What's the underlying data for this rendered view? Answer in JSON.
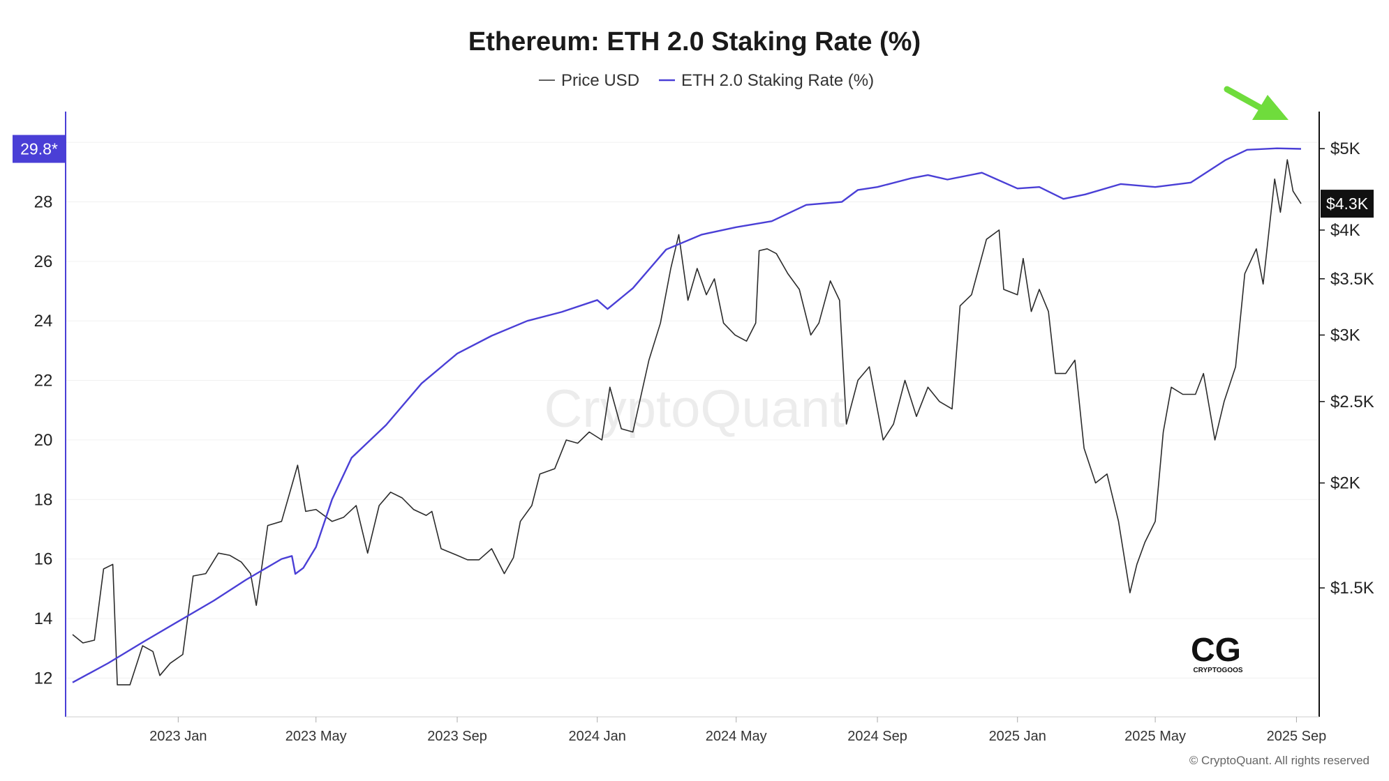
{
  "chart_data": {
    "type": "line",
    "title": "Ethereum: ETH 2.0 Staking Rate (%)",
    "legend": [
      "Price USD",
      "ETH 2.0 Staking Rate (%)"
    ],
    "legend_placement": "top-center",
    "x_ticks": [
      "2023 Jan",
      "2023 May",
      "2023 Sep",
      "2024 Jan",
      "2024 May",
      "2024 Sep",
      "2025 Jan",
      "2025 May",
      "2025 Sep"
    ],
    "x_range": [
      "2022-10-01",
      "2025-09-05"
    ],
    "y_left": {
      "ticks": [
        12,
        14,
        16,
        18,
        20,
        22,
        24,
        26,
        28
      ],
      "range": [
        11,
        30.8
      ],
      "current_label": "29.8*"
    },
    "y_right": {
      "ticks": [
        "$1.5K",
        "$2K",
        "$2.5K",
        "$3K",
        "$3.5K",
        "$4K",
        "$5K"
      ],
      "tick_values": [
        1500,
        2000,
        2500,
        3000,
        3500,
        4000,
        5000
      ],
      "scale": "log",
      "range": [
        1080,
        5430
      ],
      "current_label": "$4.3K"
    },
    "grid": true,
    "series": [
      {
        "name": "ETH 2.0 Staking Rate (%)",
        "color": "#4a3fd6",
        "axis": "left",
        "points": [
          [
            "2022-10-01",
            11.85
          ],
          [
            "2022-11-01",
            12.5
          ],
          [
            "2022-12-01",
            13.2
          ],
          [
            "2023-01-01",
            13.9
          ],
          [
            "2023-02-01",
            14.6
          ],
          [
            "2023-03-01",
            15.3
          ],
          [
            "2023-04-01",
            16.0
          ],
          [
            "2023-04-10",
            16.1
          ],
          [
            "2023-04-13",
            15.5
          ],
          [
            "2023-04-20",
            15.7
          ],
          [
            "2023-05-01",
            16.4
          ],
          [
            "2023-05-15",
            18.0
          ],
          [
            "2023-06-01",
            19.4
          ],
          [
            "2023-07-01",
            20.5
          ],
          [
            "2023-08-01",
            21.9
          ],
          [
            "2023-09-01",
            22.9
          ],
          [
            "2023-10-01",
            23.5
          ],
          [
            "2023-11-01",
            24.0
          ],
          [
            "2023-12-01",
            24.3
          ],
          [
            "2024-01-01",
            24.7
          ],
          [
            "2024-01-10",
            24.4
          ],
          [
            "2024-02-01",
            25.1
          ],
          [
            "2024-03-01",
            26.4
          ],
          [
            "2024-04-01",
            26.9
          ],
          [
            "2024-05-01",
            27.15
          ],
          [
            "2024-06-01",
            27.35
          ],
          [
            "2024-07-01",
            27.9
          ],
          [
            "2024-08-01",
            28.0
          ],
          [
            "2024-08-15",
            28.4
          ],
          [
            "2024-09-01",
            28.5
          ],
          [
            "2024-10-01",
            28.8
          ],
          [
            "2024-10-15",
            28.9
          ],
          [
            "2024-11-01",
            28.75
          ],
          [
            "2024-12-01",
            28.98
          ],
          [
            "2025-01-01",
            28.45
          ],
          [
            "2025-01-20",
            28.5
          ],
          [
            "2025-02-10",
            28.1
          ],
          [
            "2025-03-01",
            28.25
          ],
          [
            "2025-04-01",
            28.6
          ],
          [
            "2025-05-01",
            28.5
          ],
          [
            "2025-06-01",
            28.65
          ],
          [
            "2025-07-01",
            29.4
          ],
          [
            "2025-07-20",
            29.75
          ],
          [
            "2025-08-15",
            29.8
          ],
          [
            "2025-09-05",
            29.78
          ]
        ]
      },
      {
        "name": "Price USD",
        "color": "#2b2b2b",
        "axis": "right",
        "points": [
          [
            "2022-10-01",
            1320
          ],
          [
            "2022-10-10",
            1290
          ],
          [
            "2022-10-20",
            1300
          ],
          [
            "2022-10-28",
            1580
          ],
          [
            "2022-11-05",
            1600
          ],
          [
            "2022-11-09",
            1150
          ],
          [
            "2022-11-20",
            1150
          ],
          [
            "2022-12-01",
            1280
          ],
          [
            "2022-12-10",
            1260
          ],
          [
            "2022-12-16",
            1180
          ],
          [
            "2022-12-25",
            1220
          ],
          [
            "2023-01-05",
            1250
          ],
          [
            "2023-01-14",
            1550
          ],
          [
            "2023-01-25",
            1560
          ],
          [
            "2023-02-05",
            1650
          ],
          [
            "2023-02-15",
            1640
          ],
          [
            "2023-02-25",
            1610
          ],
          [
            "2023-03-05",
            1560
          ],
          [
            "2023-03-10",
            1430
          ],
          [
            "2023-03-20",
            1780
          ],
          [
            "2023-04-01",
            1800
          ],
          [
            "2023-04-15",
            2100
          ],
          [
            "2023-04-22",
            1850
          ],
          [
            "2023-05-01",
            1860
          ],
          [
            "2023-05-15",
            1800
          ],
          [
            "2023-05-25",
            1820
          ],
          [
            "2023-06-05",
            1880
          ],
          [
            "2023-06-15",
            1650
          ],
          [
            "2023-06-25",
            1880
          ],
          [
            "2023-07-05",
            1950
          ],
          [
            "2023-07-15",
            1920
          ],
          [
            "2023-07-25",
            1860
          ],
          [
            "2023-08-05",
            1830
          ],
          [
            "2023-08-10",
            1850
          ],
          [
            "2023-08-18",
            1670
          ],
          [
            "2023-09-01",
            1640
          ],
          [
            "2023-09-10",
            1620
          ],
          [
            "2023-09-20",
            1620
          ],
          [
            "2023-10-01",
            1670
          ],
          [
            "2023-10-12",
            1560
          ],
          [
            "2023-10-20",
            1630
          ],
          [
            "2023-10-26",
            1800
          ],
          [
            "2023-11-05",
            1880
          ],
          [
            "2023-11-12",
            2050
          ],
          [
            "2023-11-25",
            2080
          ],
          [
            "2023-12-05",
            2250
          ],
          [
            "2023-12-15",
            2230
          ],
          [
            "2023-12-25",
            2300
          ],
          [
            "2024-01-05",
            2250
          ],
          [
            "2024-01-12",
            2600
          ],
          [
            "2024-01-22",
            2320
          ],
          [
            "2024-02-01",
            2300
          ],
          [
            "2024-02-15",
            2800
          ],
          [
            "2024-02-25",
            3100
          ],
          [
            "2024-03-05",
            3600
          ],
          [
            "2024-03-12",
            3950
          ],
          [
            "2024-03-20",
            3300
          ],
          [
            "2024-03-28",
            3600
          ],
          [
            "2024-04-05",
            3350
          ],
          [
            "2024-04-12",
            3500
          ],
          [
            "2024-04-20",
            3100
          ],
          [
            "2024-04-30",
            3000
          ],
          [
            "2024-05-10",
            2950
          ],
          [
            "2024-05-18",
            3100
          ],
          [
            "2024-05-21",
            3780
          ],
          [
            "2024-05-28",
            3800
          ],
          [
            "2024-06-05",
            3750
          ],
          [
            "2024-06-15",
            3550
          ],
          [
            "2024-06-25",
            3400
          ],
          [
            "2024-07-05",
            3000
          ],
          [
            "2024-07-12",
            3100
          ],
          [
            "2024-07-22",
            3480
          ],
          [
            "2024-07-30",
            3300
          ],
          [
            "2024-08-05",
            2350
          ],
          [
            "2024-08-15",
            2650
          ],
          [
            "2024-08-25",
            2750
          ],
          [
            "2024-09-06",
            2250
          ],
          [
            "2024-09-15",
            2350
          ],
          [
            "2024-09-25",
            2650
          ],
          [
            "2024-10-05",
            2400
          ],
          [
            "2024-10-15",
            2600
          ],
          [
            "2024-10-25",
            2500
          ],
          [
            "2024-11-05",
            2450
          ],
          [
            "2024-11-12",
            3250
          ],
          [
            "2024-11-22",
            3350
          ],
          [
            "2024-12-05",
            3900
          ],
          [
            "2024-12-16",
            4000
          ],
          [
            "2024-12-20",
            3400
          ],
          [
            "2025-01-01",
            3350
          ],
          [
            "2025-01-06",
            3700
          ],
          [
            "2025-01-13",
            3200
          ],
          [
            "2025-01-20",
            3400
          ],
          [
            "2025-01-28",
            3200
          ],
          [
            "2025-02-03",
            2700
          ],
          [
            "2025-02-12",
            2700
          ],
          [
            "2025-02-20",
            2800
          ],
          [
            "2025-02-28",
            2200
          ],
          [
            "2025-03-10",
            2000
          ],
          [
            "2025-03-20",
            2050
          ],
          [
            "2025-03-30",
            1800
          ],
          [
            "2025-04-09",
            1480
          ],
          [
            "2025-04-15",
            1600
          ],
          [
            "2025-04-22",
            1700
          ],
          [
            "2025-05-01",
            1800
          ],
          [
            "2025-05-08",
            2300
          ],
          [
            "2025-05-15",
            2600
          ],
          [
            "2025-05-25",
            2550
          ],
          [
            "2025-06-05",
            2550
          ],
          [
            "2025-06-12",
            2700
          ],
          [
            "2025-06-22",
            2250
          ],
          [
            "2025-06-30",
            2500
          ],
          [
            "2025-07-10",
            2750
          ],
          [
            "2025-07-18",
            3550
          ],
          [
            "2025-07-28",
            3800
          ],
          [
            "2025-08-03",
            3450
          ],
          [
            "2025-08-13",
            4600
          ],
          [
            "2025-08-18",
            4200
          ],
          [
            "2025-08-24",
            4850
          ],
          [
            "2025-08-29",
            4450
          ],
          [
            "2025-09-05",
            4300
          ]
        ]
      }
    ],
    "annotation": "green arrow pointing at latest values"
  },
  "watermark": "CryptoQuant",
  "copyright": "© CryptoQuant. All rights reserved",
  "logo": {
    "mark": "CG",
    "name": "CRYPTOGOOS"
  },
  "colors": {
    "staking": "#4a3fd6",
    "price": "#2b2b2b",
    "arrow": "#6fdc3c",
    "badge_left": "#4a3fd6",
    "badge_right": "#111111"
  }
}
